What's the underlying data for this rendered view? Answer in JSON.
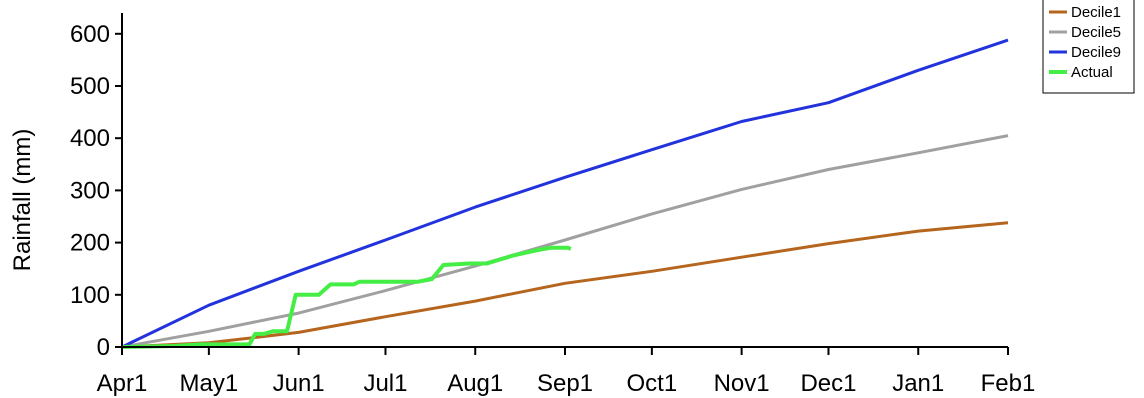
{
  "chart_data": {
    "type": "line",
    "title": "",
    "xlabel": "",
    "ylabel": "Rainfall (mm)",
    "ylim": [
      0,
      640
    ],
    "yticks": [
      0,
      100,
      200,
      300,
      400,
      500,
      600
    ],
    "x_tick_labels": [
      "Apr1",
      "May1",
      "Jun1",
      "Jul1",
      "Aug1",
      "Sep1",
      "Oct1",
      "Nov1",
      "Dec1",
      "Jan1",
      "Feb1"
    ],
    "x_tick_dates": [
      "2000-04-01",
      "2000-05-01",
      "2000-06-01",
      "2000-07-01",
      "2000-08-01",
      "2000-09-01",
      "2000-10-01",
      "2000-11-01",
      "2000-12-01",
      "2001-01-01",
      "2001-02-01"
    ],
    "grid": false,
    "legend_position": "top-right",
    "series": [
      {
        "name": "Decile1",
        "color": "#b5651d",
        "points": [
          [
            "2000-04-01",
            0
          ],
          [
            "2000-05-01",
            8
          ],
          [
            "2000-06-01",
            28
          ],
          [
            "2000-07-01",
            58
          ],
          [
            "2000-08-01",
            88
          ],
          [
            "2000-09-01",
            122
          ],
          [
            "2000-10-01",
            145
          ],
          [
            "2000-11-01",
            172
          ],
          [
            "2000-12-01",
            198
          ],
          [
            "2001-01-01",
            222
          ],
          [
            "2001-02-01",
            238
          ]
        ]
      },
      {
        "name": "Decile5",
        "color": "#a0a0a0",
        "points": [
          [
            "2000-04-01",
            0
          ],
          [
            "2000-05-01",
            30
          ],
          [
            "2000-06-01",
            65
          ],
          [
            "2000-07-01",
            108
          ],
          [
            "2000-08-01",
            155
          ],
          [
            "2000-09-01",
            205
          ],
          [
            "2000-10-01",
            255
          ],
          [
            "2000-11-01",
            302
          ],
          [
            "2000-12-01",
            340
          ],
          [
            "2001-01-01",
            372
          ],
          [
            "2001-02-01",
            405
          ]
        ]
      },
      {
        "name": "Decile9",
        "color": "#2233dd",
        "points": [
          [
            "2000-04-01",
            0
          ],
          [
            "2000-05-01",
            80
          ],
          [
            "2000-06-01",
            145
          ],
          [
            "2000-07-01",
            205
          ],
          [
            "2000-08-01",
            268
          ],
          [
            "2000-09-01",
            325
          ],
          [
            "2000-10-01",
            378
          ],
          [
            "2000-11-01",
            432
          ],
          [
            "2000-12-01",
            468
          ],
          [
            "2001-01-01",
            530
          ],
          [
            "2001-02-01",
            588
          ]
        ]
      },
      {
        "name": "Actual",
        "color": "#44ee44",
        "points": [
          [
            "2000-04-01",
            0
          ],
          [
            "2000-04-19",
            2
          ],
          [
            "2000-04-28",
            5
          ],
          [
            "2000-05-06",
            5
          ],
          [
            "2000-05-15",
            5
          ],
          [
            "2000-05-17",
            25
          ],
          [
            "2000-05-20",
            25
          ],
          [
            "2000-05-23",
            30
          ],
          [
            "2000-05-28",
            30
          ],
          [
            "2000-05-31",
            100
          ],
          [
            "2000-06-08",
            100
          ],
          [
            "2000-06-12",
            120
          ],
          [
            "2000-06-20",
            120
          ],
          [
            "2000-06-22",
            125
          ],
          [
            "2000-07-12",
            125
          ],
          [
            "2000-07-17",
            130
          ],
          [
            "2000-07-21",
            157
          ],
          [
            "2000-07-30",
            160
          ],
          [
            "2000-08-05",
            160
          ],
          [
            "2000-08-14",
            175
          ],
          [
            "2000-08-22",
            185
          ],
          [
            "2000-08-27",
            190
          ],
          [
            "2000-09-02",
            190
          ],
          [
            "2000-09-03",
            188
          ]
        ]
      }
    ]
  }
}
